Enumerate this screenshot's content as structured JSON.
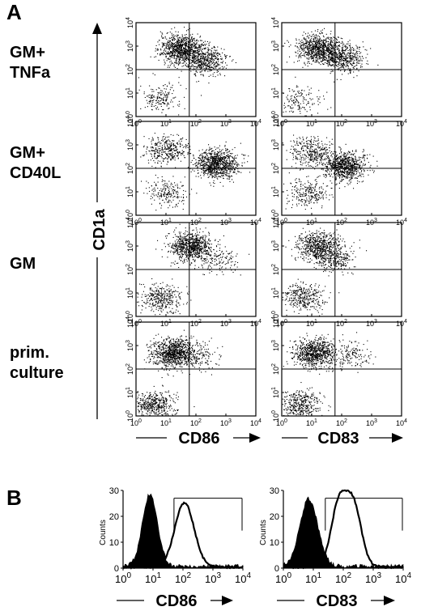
{
  "panel_a": {
    "label": "A",
    "y_axis_label": "CD1a",
    "rows": [
      {
        "label_lines": [
          "GM+",
          "TNFa"
        ]
      },
      {
        "label_lines": [
          "GM+",
          "CD40L"
        ]
      },
      {
        "label_lines": [
          "GM"
        ]
      },
      {
        "label_lines": [
          "prim.",
          "culture"
        ]
      }
    ],
    "col_labels": [
      "CD86",
      "CD83"
    ]
  },
  "panel_b": {
    "label": "B",
    "y_axis_label": "Counts",
    "x_labels": [
      "CD86",
      "CD83"
    ]
  },
  "tick_labels": {
    "bases": [
      "10",
      "10",
      "10",
      "10",
      "10"
    ],
    "exps": [
      "0",
      "1",
      "2",
      "3",
      "4"
    ]
  },
  "hist_y_ticks": [
    "0",
    "10",
    "20",
    "30"
  ],
  "chart_data": [
    {
      "type": "scatter",
      "description_rows": [
        "GM+TNFa",
        "GM+CD40L",
        "GM",
        "prim. culture"
      ],
      "columns": [
        "CD86",
        "CD83"
      ],
      "xscale": "log",
      "yscale": "log",
      "xlim": [
        1,
        10000
      ],
      "ylim": [
        1,
        10000
      ],
      "quadrant_gate": {
        "x": 60,
        "y": 100
      },
      "populations_log10": [
        {
          "row": "GM+TNFa",
          "col": "CD86",
          "clusters": [
            {
              "x": 0.8,
              "y": 0.8,
              "n": 180
            },
            {
              "x": 1.5,
              "y": 2.9,
              "n": 900
            },
            {
              "x": 2.3,
              "y": 2.4,
              "n": 500
            }
          ]
        },
        {
          "row": "GM+TNFa",
          "col": "CD83",
          "clusters": [
            {
              "x": 0.6,
              "y": 0.7,
              "n": 150
            },
            {
              "x": 1.2,
              "y": 2.9,
              "n": 800
            },
            {
              "x": 2.0,
              "y": 2.5,
              "n": 500
            }
          ]
        },
        {
          "row": "GM+CD40L",
          "col": "CD86",
          "clusters": [
            {
              "x": 1.0,
              "y": 1.0,
              "n": 200
            },
            {
              "x": 1.0,
              "y": 2.8,
              "n": 350
            },
            {
              "x": 2.7,
              "y": 2.2,
              "n": 900
            }
          ]
        },
        {
          "row": "GM+CD40L",
          "col": "CD83",
          "clusters": [
            {
              "x": 0.9,
              "y": 1.0,
              "n": 250
            },
            {
              "x": 1.0,
              "y": 2.7,
              "n": 350
            },
            {
              "x": 2.1,
              "y": 2.1,
              "n": 800
            }
          ]
        },
        {
          "row": "GM",
          "col": "CD86",
          "clusters": [
            {
              "x": 0.8,
              "y": 0.8,
              "n": 350
            },
            {
              "x": 1.8,
              "y": 3.0,
              "n": 800
            },
            {
              "x": 2.7,
              "y": 2.4,
              "n": 150
            }
          ]
        },
        {
          "row": "GM",
          "col": "CD83",
          "clusters": [
            {
              "x": 0.7,
              "y": 0.8,
              "n": 350
            },
            {
              "x": 1.2,
              "y": 3.0,
              "n": 600
            },
            {
              "x": 1.7,
              "y": 2.5,
              "n": 300
            }
          ]
        },
        {
          "row": "prim. culture",
          "col": "CD86",
          "clusters": [
            {
              "x": 0.6,
              "y": 0.5,
              "n": 450
            },
            {
              "x": 1.2,
              "y": 2.7,
              "n": 900
            },
            {
              "x": 2.0,
              "y": 2.6,
              "n": 200
            }
          ]
        },
        {
          "row": "prim. culture",
          "col": "CD83",
          "clusters": [
            {
              "x": 0.6,
              "y": 0.5,
              "n": 400
            },
            {
              "x": 1.1,
              "y": 2.7,
              "n": 800
            },
            {
              "x": 2.3,
              "y": 2.6,
              "n": 150
            }
          ]
        }
      ]
    },
    {
      "type": "area",
      "markers": [
        "CD86",
        "CD83"
      ],
      "xscale": "log",
      "xlim": [
        1,
        10000
      ],
      "ylim": [
        0,
        30
      ],
      "ylabel": "Counts",
      "gate_log10": [
        [
          1.7,
          4.0
        ],
        [
          1.4,
          4.0
        ]
      ],
      "filled_histogram_peaks_log10": [
        {
          "x": 0.9,
          "sd": 0.25,
          "h": 28
        },
        {
          "x": 0.85,
          "sd": 0.3,
          "h": 26
        }
      ],
      "open_histogram_peaks_log10": [
        [
          {
            "x": 2.05,
            "sd": 0.32,
            "h": 25
          }
        ],
        [
          {
            "x": 1.85,
            "sd": 0.26,
            "h": 24
          },
          {
            "x": 2.35,
            "sd": 0.26,
            "h": 23
          }
        ]
      ]
    }
  ]
}
